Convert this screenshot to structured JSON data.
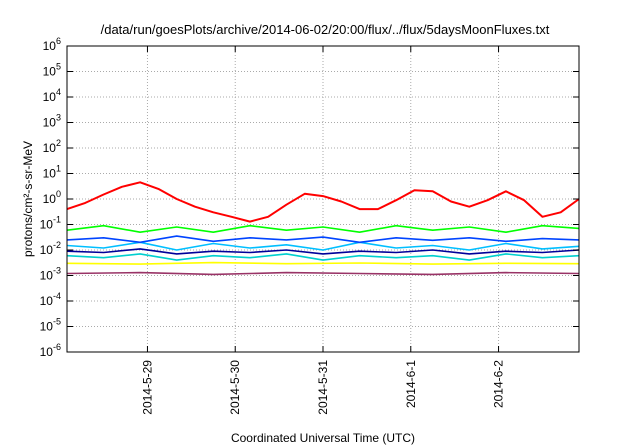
{
  "chart_data": {
    "type": "line",
    "title": "/data/run/goesPlots/archive/2014-06-02/20:00/flux/../flux/5daysMoonFluxes.txt",
    "xlabel": "Coordinated Universal Time (UTC)",
    "ylabel": "protons/cm²-s-sr-MeV",
    "yscale": "log",
    "ylim": [
      1e-06,
      1000000.0
    ],
    "xlim": [
      "2014-05-28 02:00",
      "2014-06-02 22:00"
    ],
    "grid": true,
    "x_ticks": [
      "2014-5-29",
      "2014-5-30",
      "2014-5-31",
      "2014-6-1",
      "2014-6-2"
    ],
    "y_ticks": [
      "10-6",
      "10-5",
      "10-4",
      "10-3",
      "10-2",
      "10-1",
      "100",
      "101",
      "102",
      "103",
      "104",
      "105",
      "106"
    ],
    "series": [
      {
        "color": "#ff0000",
        "x": [
          "2014-05-28 02:00",
          "2014-05-28 07:00",
          "2014-05-28 12:00",
          "2014-05-28 17:00",
          "2014-05-28 22:00",
          "2014-05-29 03:00",
          "2014-05-29 08:00",
          "2014-05-29 13:00",
          "2014-05-29 18:00",
          "2014-05-29 23:00",
          "2014-05-30 04:00",
          "2014-05-30 09:00",
          "2014-05-30 14:00",
          "2014-05-30 19:00",
          "2014-05-31 00:00",
          "2014-05-31 05:00",
          "2014-05-31 10:00",
          "2014-05-31 15:00",
          "2014-05-31 20:00",
          "2014-06-01 01:00",
          "2014-06-01 06:00",
          "2014-06-01 11:00",
          "2014-06-01 16:00",
          "2014-06-01 21:00",
          "2014-06-02 02:00",
          "2014-06-02 07:00",
          "2014-06-02 12:00",
          "2014-06-02 17:00",
          "2014-06-02 22:00"
        ],
        "values": [
          0.4,
          0.7,
          1.5,
          3.0,
          4.5,
          2.5,
          1.0,
          0.5,
          0.3,
          0.2,
          0.13,
          0.2,
          0.6,
          1.6,
          1.3,
          0.8,
          0.4,
          0.4,
          0.9,
          2.2,
          2.0,
          0.8,
          0.5,
          0.9,
          2.0,
          0.9,
          0.2,
          0.3,
          1.0
        ]
      },
      {
        "color": "#00ff00",
        "x": [
          "2014-05-28 02:00",
          "2014-05-28 12:00",
          "2014-05-28 22:00",
          "2014-05-29 08:00",
          "2014-05-29 18:00",
          "2014-05-30 04:00",
          "2014-05-30 14:00",
          "2014-05-31 00:00",
          "2014-05-31 10:00",
          "2014-05-31 20:00",
          "2014-06-01 06:00",
          "2014-06-01 16:00",
          "2014-06-02 02:00",
          "2014-06-02 12:00",
          "2014-06-02 22:00"
        ],
        "values": [
          0.06,
          0.09,
          0.05,
          0.08,
          0.05,
          0.09,
          0.06,
          0.08,
          0.05,
          0.09,
          0.06,
          0.08,
          0.05,
          0.09,
          0.07
        ]
      },
      {
        "color": "#00bfff",
        "x": [
          "2014-05-28 02:00",
          "2014-05-28 12:00",
          "2014-05-28 22:00",
          "2014-05-29 08:00",
          "2014-05-29 18:00",
          "2014-05-30 04:00",
          "2014-05-30 14:00",
          "2014-05-31 00:00",
          "2014-05-31 10:00",
          "2014-05-31 20:00",
          "2014-06-01 06:00",
          "2014-06-01 16:00",
          "2014-06-02 02:00",
          "2014-06-02 12:00",
          "2014-06-02 22:00"
        ],
        "values": [
          0.015,
          0.012,
          0.02,
          0.01,
          0.018,
          0.012,
          0.016,
          0.01,
          0.02,
          0.012,
          0.015,
          0.01,
          0.018,
          0.011,
          0.014
        ]
      },
      {
        "color": "#0044ff",
        "x": [
          "2014-05-28 02:00",
          "2014-05-28 12:00",
          "2014-05-28 22:00",
          "2014-05-29 08:00",
          "2014-05-29 18:00",
          "2014-05-30 04:00",
          "2014-05-30 14:00",
          "2014-05-31 00:00",
          "2014-05-31 10:00",
          "2014-05-31 20:00",
          "2014-06-01 06:00",
          "2014-06-01 16:00",
          "2014-06-02 02:00",
          "2014-06-02 12:00",
          "2014-06-02 22:00"
        ],
        "values": [
          0.025,
          0.03,
          0.02,
          0.035,
          0.022,
          0.03,
          0.025,
          0.032,
          0.02,
          0.03,
          0.024,
          0.03,
          0.022,
          0.028,
          0.025
        ]
      },
      {
        "color": "#00cfcf",
        "x": [
          "2014-05-28 02:00",
          "2014-05-28 12:00",
          "2014-05-28 22:00",
          "2014-05-29 08:00",
          "2014-05-29 18:00",
          "2014-05-30 04:00",
          "2014-05-30 14:00",
          "2014-05-31 00:00",
          "2014-05-31 10:00",
          "2014-05-31 20:00",
          "2014-06-01 06:00",
          "2014-06-01 16:00",
          "2014-06-02 02:00",
          "2014-06-02 12:00",
          "2014-06-02 22:00"
        ],
        "values": [
          0.006,
          0.005,
          0.007,
          0.004,
          0.006,
          0.005,
          0.007,
          0.004,
          0.006,
          0.005,
          0.006,
          0.004,
          0.007,
          0.005,
          0.006
        ]
      },
      {
        "color": "#000099",
        "x": [
          "2014-05-28 02:00",
          "2014-05-28 12:00",
          "2014-05-28 22:00",
          "2014-05-29 08:00",
          "2014-05-29 18:00",
          "2014-05-30 04:00",
          "2014-05-30 14:00",
          "2014-05-31 00:00",
          "2014-05-31 10:00",
          "2014-05-31 20:00",
          "2014-06-01 06:00",
          "2014-06-01 16:00",
          "2014-06-02 02:00",
          "2014-06-02 12:00",
          "2014-06-02 22:00"
        ],
        "values": [
          0.009,
          0.008,
          0.011,
          0.007,
          0.009,
          0.008,
          0.01,
          0.007,
          0.009,
          0.008,
          0.01,
          0.007,
          0.009,
          0.008,
          0.01
        ]
      },
      {
        "color": "#ffff00",
        "x": [
          "2014-05-28 02:00",
          "2014-05-28 22:00",
          "2014-05-29 18:00",
          "2014-05-30 14:00",
          "2014-05-31 10:00",
          "2014-06-01 06:00",
          "2014-06-02 02:00",
          "2014-06-02 22:00"
        ],
        "values": [
          0.003,
          0.0028,
          0.0032,
          0.0029,
          0.0031,
          0.0028,
          0.003,
          0.0029
        ]
      },
      {
        "color": "#993366",
        "x": [
          "2014-05-28 02:00",
          "2014-05-28 22:00",
          "2014-05-29 18:00",
          "2014-05-30 14:00",
          "2014-05-31 10:00",
          "2014-06-01 06:00",
          "2014-06-02 02:00",
          "2014-06-02 22:00"
        ],
        "values": [
          0.0012,
          0.0013,
          0.0011,
          0.0013,
          0.0012,
          0.0011,
          0.0013,
          0.0012
        ]
      }
    ]
  }
}
